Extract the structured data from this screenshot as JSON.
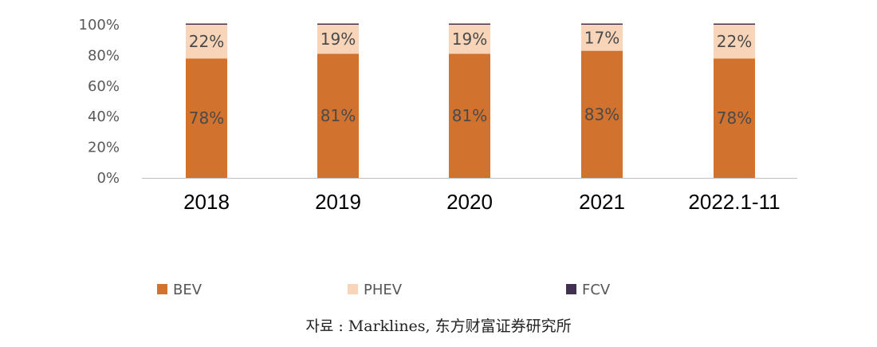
{
  "chart_data": {
    "type": "bar",
    "stacked": true,
    "percent_stacked": true,
    "categories": [
      "2018",
      "2019",
      "2020",
      "2021",
      "2022.1-11"
    ],
    "series": [
      {
        "name": "BEV",
        "values": [
          78,
          81,
          81,
          83,
          78
        ],
        "color": "#d2722f"
      },
      {
        "name": "PHEV",
        "values": [
          22,
          19,
          19,
          17,
          22
        ],
        "color": "#f8d5b8"
      },
      {
        "name": "FCV",
        "values": [
          0.7,
          0.7,
          0.7,
          0.7,
          0.7
        ],
        "color": "#403151"
      }
    ],
    "data_labels": {
      "BEV": [
        "78%",
        "81%",
        "81%",
        "83%",
        "78%"
      ],
      "PHEV": [
        "22%",
        "19%",
        "19%",
        "17%",
        "22%"
      ]
    },
    "y_ticks": [
      "0%",
      "20%",
      "40%",
      "60%",
      "80%",
      "100%"
    ],
    "ylim": [
      0,
      100
    ],
    "grid": false,
    "legend_position": "bottom"
  },
  "source_text": "자료 : Marklines, 东方财富证券研究所"
}
